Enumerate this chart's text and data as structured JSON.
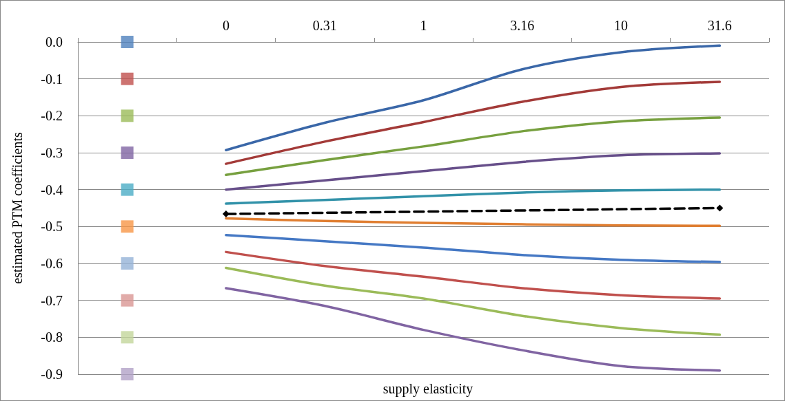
{
  "chart_data": {
    "type": "line",
    "xlabel": "supply elasticity",
    "ylabel": "estimated PTM coefficients",
    "categories": [
      null,
      "0",
      "0.31",
      "1",
      "3.16",
      "10",
      "31.6"
    ],
    "ylim": [
      -0.9,
      0
    ],
    "yticks": [
      -0.9,
      -0.8,
      -0.7,
      -0.6,
      -0.5,
      -0.4,
      -0.3,
      -0.2,
      -0.1,
      {
        "value": 0,
        "label": "0.0"
      }
    ],
    "grid": "y",
    "marker": "none",
    "line_style": "solid",
    "series": [
      {
        "color": "#3a67a8",
        "values": [
          null,
          -0.293,
          -0.219,
          -0.158,
          -0.074,
          -0.028,
          -0.01
        ]
      },
      {
        "color": "#a33a38",
        "values": [
          null,
          -0.33,
          -0.27,
          -0.217,
          -0.162,
          -0.122,
          -0.108
        ]
      },
      {
        "color": "#77a03f",
        "values": [
          null,
          -0.36,
          -0.32,
          -0.283,
          -0.242,
          -0.215,
          -0.205
        ]
      },
      {
        "color": "#674f8a",
        "values": [
          null,
          -0.4,
          -0.375,
          -0.35,
          -0.325,
          -0.307,
          -0.302
        ]
      },
      {
        "color": "#3292a9",
        "values": [
          null,
          -0.438,
          -0.428,
          -0.418,
          -0.408,
          -0.402,
          -0.4
        ]
      },
      {
        "color": "#000000",
        "values": [
          null,
          -0.466,
          null,
          null,
          null,
          null,
          -0.45
        ],
        "line_style": "dashed",
        "marker": "diamond"
      },
      {
        "color": "#e07e31",
        "values": [
          null,
          -0.478,
          -0.485,
          -0.49,
          -0.494,
          -0.497,
          -0.498
        ]
      },
      {
        "color": "#4578c4",
        "values": [
          null,
          -0.523,
          -0.54,
          -0.557,
          -0.577,
          -0.59,
          -0.596
        ]
      },
      {
        "color": "#c0504d",
        "values": [
          null,
          -0.569,
          -0.607,
          -0.636,
          -0.667,
          -0.686,
          -0.695
        ]
      },
      {
        "color": "#9bbb59",
        "values": [
          null,
          -0.612,
          -0.66,
          -0.695,
          -0.742,
          -0.775,
          -0.793
        ]
      },
      {
        "color": "#8064a2",
        "values": [
          null,
          -0.667,
          -0.715,
          -0.78,
          -0.835,
          -0.878,
          -0.89
        ]
      },
      {
        "type": "scatter",
        "marker": "square",
        "x": [
          null,
          null,
          null,
          null,
          null,
          null,
          null,
          null,
          null,
          null
        ],
        "values": [
          0,
          -0.1,
          -0.2,
          -0.3,
          -0.4,
          -0.5,
          -0.6,
          -0.7,
          -0.8,
          -0.9
        ],
        "colors": [
          "#4f81bd",
          "#c0504d",
          "#9bbb59",
          "#8064a2",
          "#4bacc6",
          "#f79646",
          "#95b3d7",
          "#da9694",
          "#c3d69b",
          "#b2a1c7"
        ]
      }
    ]
  }
}
